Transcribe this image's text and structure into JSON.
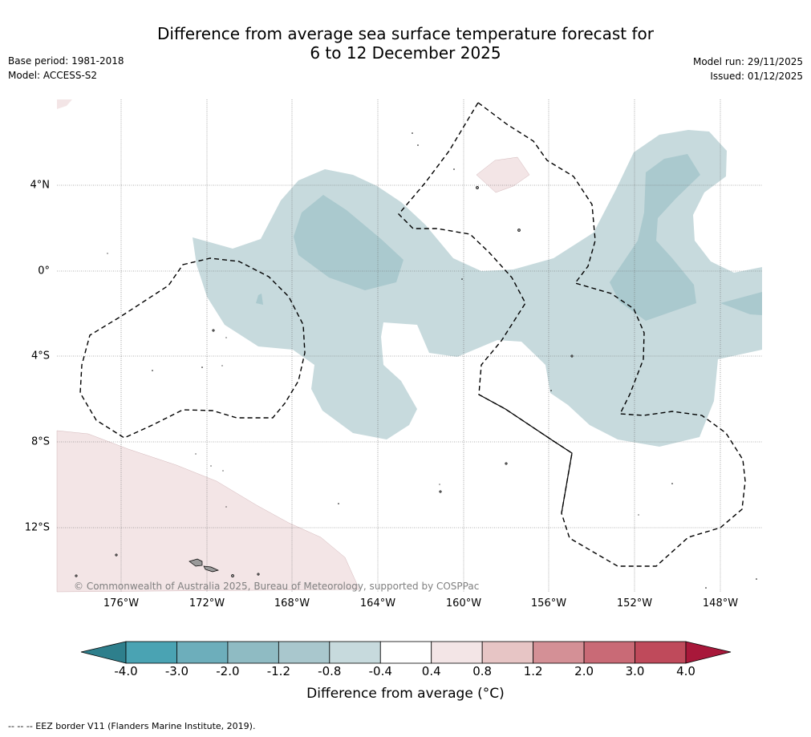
{
  "header": {
    "title_line1": "Difference from average sea surface temperature forecast for",
    "title_line2": "6 to 12 December 2025",
    "base_period": "Base period: 1981-2018",
    "model": "Model: ACCESS-S2",
    "model_run": "Model run: 29/11/2025",
    "issued": "Issued: 01/12/2025"
  },
  "map": {
    "copyright": "© Commonwealth of Australia 2025, Bureau of Meteorology, supported by COSPPac",
    "lon_labels": [
      "176°W",
      "172°W",
      "168°W",
      "164°W",
      "160°W",
      "156°W",
      "152°W",
      "148°W"
    ],
    "lat_labels": [
      "4°N",
      "0°",
      "4°S",
      "8°S",
      "12°S"
    ]
  },
  "colorbar": {
    "labels": [
      "-4.0",
      "-3.0",
      "-2.0",
      "-1.2",
      "-0.8",
      "-0.4",
      "0.4",
      "0.8",
      "1.2",
      "2.0",
      "3.0",
      "4.0"
    ],
    "colors": [
      "#2e7f8c",
      "#4aa3b3",
      "#6daebb",
      "#8fbbc3",
      "#a9c7cd",
      "#c7dadd",
      "#ffffff",
      "#f3e5e6",
      "#e7c5c5",
      "#d49096",
      "#c96a76",
      "#bf4a5b",
      "#a8183a"
    ],
    "title": "Difference from average (°C)"
  },
  "footnote": "--  --  -- EEZ border V11 (Flanders Marine Institute, 2019)."
}
